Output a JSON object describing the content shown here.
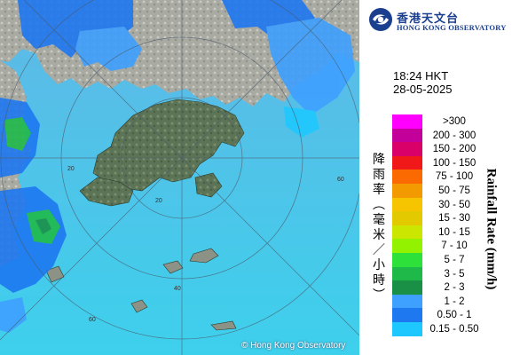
{
  "header": {
    "org_name_cn": "香港天文台",
    "org_name_en": "HONG KONG OBSERVATORY",
    "logo_icon": "hko-logo-icon"
  },
  "timestamp": {
    "time": "18:24 HKT",
    "date": "28-05-2025"
  },
  "map": {
    "range_ring_labels": [
      "20",
      "40",
      "60"
    ],
    "copyright": "© Hong Kong Observatory"
  },
  "legend": {
    "title_cn": "降雨率(毫米/小時)",
    "title_en": "Rainfall Rate (mm/h)",
    "items": [
      {
        "label": ">300",
        "color": "#ff00ff"
      },
      {
        "label": "200 - 300",
        "color": "#c4009a"
      },
      {
        "label": "150 - 200",
        "color": "#d9006a"
      },
      {
        "label": "100 - 150",
        "color": "#f01818"
      },
      {
        "label": "75 - 100",
        "color": "#fb6a00"
      },
      {
        "label": "50 - 75",
        "color": "#f39a00"
      },
      {
        "label": "30 - 50",
        "color": "#f7c400"
      },
      {
        "label": "15 - 30",
        "color": "#e3c900"
      },
      {
        "label": "10 - 15",
        "color": "#cbe600"
      },
      {
        "label": "7 - 10",
        "color": "#92f200"
      },
      {
        "label": "5 - 7",
        "color": "#2ee03a"
      },
      {
        "label": "3 - 5",
        "color": "#1fb94a"
      },
      {
        "label": "2 - 3",
        "color": "#1a9046"
      },
      {
        "label": "1 - 2",
        "color": "#3ea0ff"
      },
      {
        "label": "0.50 - 1",
        "color": "#1e78f0"
      },
      {
        "label": "0.15 - 0.50",
        "color": "#1ec8ff"
      }
    ]
  }
}
